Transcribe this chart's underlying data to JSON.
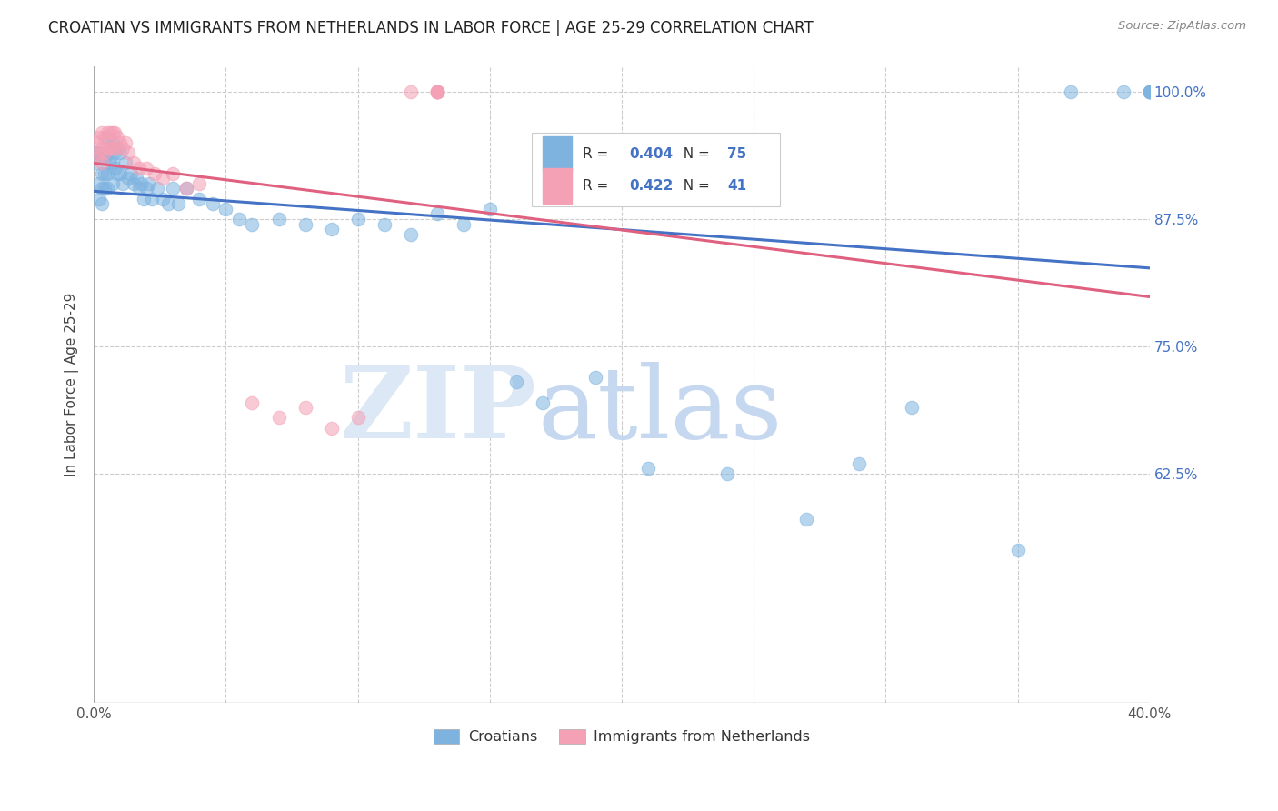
{
  "title": "CROATIAN VS IMMIGRANTS FROM NETHERLANDS IN LABOR FORCE | AGE 25-29 CORRELATION CHART",
  "source": "Source: ZipAtlas.com",
  "ylabel": "In Labor Force | Age 25-29",
  "x_min": 0.0,
  "x_max": 0.4,
  "y_min": 0.4,
  "y_max": 1.025,
  "background_color": "#ffffff",
  "grid_color": "#cccccc",
  "blue_color": "#7eb3e0",
  "pink_color": "#f4a0b5",
  "blue_line_color": "#4472c4",
  "pink_line_color": "#e06080",
  "legend_r_blue": "0.404",
  "legend_n_blue": "75",
  "legend_r_pink": "0.422",
  "legend_n_pink": "41",
  "legend_value_color": "#4472c4",
  "right_axis_color": "#4472c4",
  "blue_scatter_x": [
    0.001,
    0.001,
    0.002,
    0.002,
    0.002,
    0.003,
    0.003,
    0.003,
    0.003,
    0.004,
    0.004,
    0.004,
    0.005,
    0.005,
    0.005,
    0.005,
    0.006,
    0.006,
    0.007,
    0.007,
    0.007,
    0.008,
    0.008,
    0.009,
    0.009,
    0.01,
    0.01,
    0.011,
    0.012,
    0.013,
    0.014,
    0.015,
    0.016,
    0.017,
    0.018,
    0.019,
    0.02,
    0.021,
    0.022,
    0.024,
    0.026,
    0.028,
    0.03,
    0.032,
    0.035,
    0.04,
    0.045,
    0.05,
    0.055,
    0.06,
    0.07,
    0.08,
    0.09,
    0.1,
    0.11,
    0.12,
    0.13,
    0.14,
    0.15,
    0.16,
    0.17,
    0.19,
    0.21,
    0.24,
    0.27,
    0.29,
    0.31,
    0.35,
    0.37,
    0.39,
    0.4,
    0.4,
    0.4,
    0.4,
    0.4
  ],
  "blue_scatter_y": [
    0.94,
    0.93,
    0.91,
    0.895,
    0.94,
    0.935,
    0.92,
    0.905,
    0.89,
    0.935,
    0.92,
    0.905,
    0.955,
    0.94,
    0.92,
    0.905,
    0.945,
    0.93,
    0.95,
    0.93,
    0.91,
    0.94,
    0.925,
    0.945,
    0.92,
    0.94,
    0.92,
    0.91,
    0.93,
    0.915,
    0.92,
    0.91,
    0.915,
    0.905,
    0.91,
    0.895,
    0.905,
    0.91,
    0.895,
    0.905,
    0.895,
    0.89,
    0.905,
    0.89,
    0.905,
    0.895,
    0.89,
    0.885,
    0.875,
    0.87,
    0.875,
    0.87,
    0.865,
    0.875,
    0.87,
    0.86,
    0.88,
    0.87,
    0.885,
    0.715,
    0.695,
    0.72,
    0.63,
    0.625,
    0.58,
    0.635,
    0.69,
    0.55,
    1.0,
    1.0,
    1.0,
    1.0,
    1.0,
    1.0,
    1.0
  ],
  "pink_scatter_x": [
    0.001,
    0.001,
    0.002,
    0.002,
    0.003,
    0.003,
    0.003,
    0.004,
    0.004,
    0.005,
    0.005,
    0.006,
    0.006,
    0.007,
    0.007,
    0.008,
    0.008,
    0.009,
    0.01,
    0.011,
    0.012,
    0.013,
    0.015,
    0.017,
    0.02,
    0.023,
    0.026,
    0.03,
    0.035,
    0.04,
    0.06,
    0.07,
    0.08,
    0.09,
    0.1,
    0.12,
    0.13,
    0.13,
    0.13,
    0.13,
    0.13
  ],
  "pink_scatter_y": [
    0.95,
    0.935,
    0.955,
    0.94,
    0.96,
    0.945,
    0.93,
    0.955,
    0.94,
    0.96,
    0.945,
    0.96,
    0.945,
    0.96,
    0.945,
    0.96,
    0.945,
    0.955,
    0.95,
    0.945,
    0.95,
    0.94,
    0.93,
    0.925,
    0.925,
    0.92,
    0.915,
    0.92,
    0.905,
    0.91,
    0.695,
    0.68,
    0.69,
    0.67,
    0.68,
    1.0,
    1.0,
    1.0,
    1.0,
    1.0,
    1.0
  ]
}
